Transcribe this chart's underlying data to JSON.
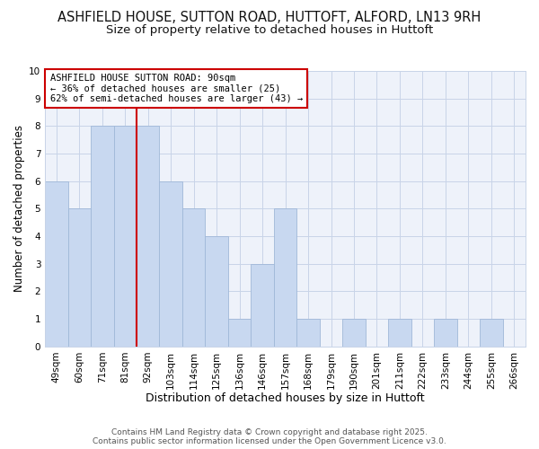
{
  "title1": "ASHFIELD HOUSE, SUTTON ROAD, HUTTOFT, ALFORD, LN13 9RH",
  "title2": "Size of property relative to detached houses in Huttoft",
  "xlabel": "Distribution of detached houses by size in Huttoft",
  "ylabel": "Number of detached properties",
  "bin_labels": [
    "49sqm",
    "60sqm",
    "71sqm",
    "81sqm",
    "92sqm",
    "103sqm",
    "114sqm",
    "125sqm",
    "136sqm",
    "146sqm",
    "157sqm",
    "168sqm",
    "179sqm",
    "190sqm",
    "201sqm",
    "211sqm",
    "222sqm",
    "233sqm",
    "244sqm",
    "255sqm",
    "266sqm"
  ],
  "bar_heights": [
    6,
    5,
    8,
    8,
    8,
    6,
    5,
    4,
    1,
    3,
    5,
    1,
    0,
    1,
    0,
    1,
    0,
    1,
    0,
    1,
    0
  ],
  "bar_color": "#c8d8f0",
  "bar_edge_color": "#a0b8d8",
  "vline_color": "#cc0000",
  "annotation_text": "ASHFIELD HOUSE SUTTON ROAD: 90sqm\n← 36% of detached houses are smaller (25)\n62% of semi-detached houses are larger (43) →",
  "annotation_box_color": "#ffffff",
  "annotation_box_edge": "#cc0000",
  "ylim": [
    0,
    10
  ],
  "yticks": [
    0,
    1,
    2,
    3,
    4,
    5,
    6,
    7,
    8,
    9,
    10
  ],
  "footer1": "Contains HM Land Registry data © Crown copyright and database right 2025.",
  "footer2": "Contains public sector information licensed under the Open Government Licence v3.0.",
  "title1_fontsize": 10.5,
  "title2_fontsize": 9.5,
  "xlabel_fontsize": 9,
  "ylabel_fontsize": 8.5,
  "tick_fontsize": 7.5,
  "footer_fontsize": 6.5,
  "annotation_fontsize": 7.5,
  "grid_color": "#c8d4e8",
  "bg_color": "#eef2fa"
}
